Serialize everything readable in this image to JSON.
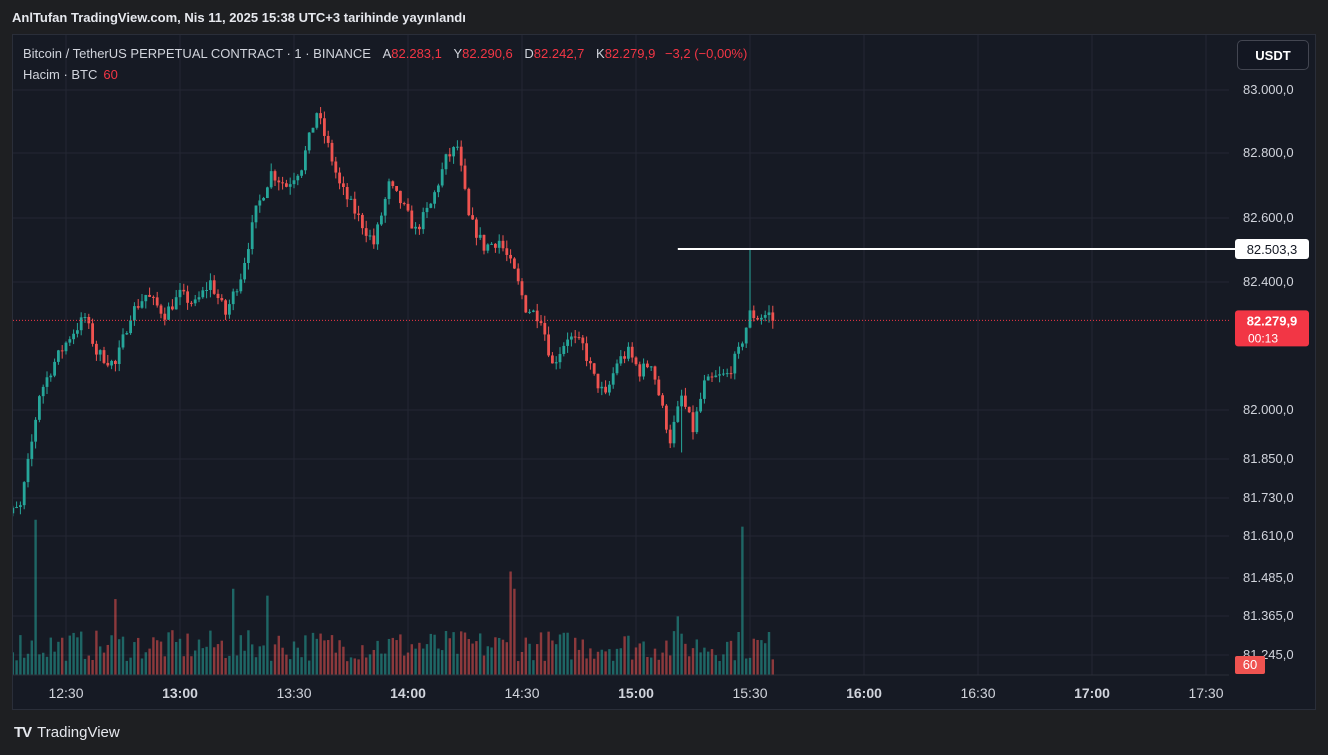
{
  "header": {
    "published": "AnlTufan TradingView.com, Nis 11, 2025 15:38 UTC+3 tarihinde yayınlandı"
  },
  "legend": {
    "symbol": "Bitcoin / TetherUS PERPETUAL CONTRACT · 1 · BINANCE",
    "open_label": "A",
    "open": "82.283,1",
    "high_label": "Y",
    "high": "82.290,6",
    "low_label": "D",
    "low": "82.242,7",
    "close_label": "K",
    "close": "82.279,9",
    "change": "−3,2 (−0,00%)",
    "volume_label": "Hacim · BTC",
    "volume_value": "60"
  },
  "currency_button": "USDT",
  "footer": {
    "brand": "TradingView",
    "logo": "TV"
  },
  "colors": {
    "up": "#26a69a",
    "down": "#ef5350",
    "price_badge": "#f23645",
    "background": "#161a24",
    "grid": "#242733"
  },
  "chart_data": {
    "type": "candlestick",
    "y_axis_ticks": [
      "83.000,0",
      "82.800,0",
      "82.600,0",
      "82.400,0",
      "82.000,0",
      "81.850,0",
      "81.730,0",
      "81.610,0",
      "81.485,0",
      "81.365,0",
      "81.245,0"
    ],
    "x_axis_ticks": [
      "12:30",
      "13:00",
      "13:30",
      "14:00",
      "14:30",
      "15:00",
      "15:30",
      "16:00",
      "16:30",
      "17:00",
      "17:30"
    ],
    "bold_x_ticks": [
      "13:00",
      "14:00",
      "15:00",
      "16:00",
      "17:00"
    ],
    "horizontal_line": {
      "label": "82.503,3",
      "value": 82503.3,
      "start_time": "15:11"
    },
    "last_price": {
      "label": "82.279,9",
      "countdown": "00:13",
      "value": 82279.9
    },
    "volume_badge": "60",
    "keypoints": [
      {
        "t": "12:12",
        "p": 81590
      },
      {
        "t": "12:15",
        "p": 81680
      },
      {
        "t": "12:18",
        "p": 81700
      },
      {
        "t": "12:21",
        "p": 81900
      },
      {
        "t": "12:23",
        "p": 82050
      },
      {
        "t": "12:27",
        "p": 82150
      },
      {
        "t": "12:31",
        "p": 82230
      },
      {
        "t": "12:35",
        "p": 82290
      },
      {
        "t": "12:38",
        "p": 82180
      },
      {
        "t": "12:43",
        "p": 82140
      },
      {
        "t": "12:47",
        "p": 82300
      },
      {
        "t": "12:51",
        "p": 82360
      },
      {
        "t": "12:56",
        "p": 82300
      },
      {
        "t": "13:00",
        "p": 82360
      },
      {
        "t": "13:04",
        "p": 82330
      },
      {
        "t": "13:08",
        "p": 82400
      },
      {
        "t": "13:12",
        "p": 82300
      },
      {
        "t": "13:16",
        "p": 82420
      },
      {
        "t": "13:20",
        "p": 82620
      },
      {
        "t": "13:24",
        "p": 82740
      },
      {
        "t": "13:28",
        "p": 82700
      },
      {
        "t": "13:32",
        "p": 82760
      },
      {
        "t": "13:36",
        "p": 82930
      },
      {
        "t": "13:39",
        "p": 82820
      },
      {
        "t": "13:42",
        "p": 82700
      },
      {
        "t": "13:46",
        "p": 82620
      },
      {
        "t": "13:51",
        "p": 82520
      },
      {
        "t": "13:55",
        "p": 82700
      },
      {
        "t": "13:58",
        "p": 82650
      },
      {
        "t": "14:02",
        "p": 82560
      },
      {
        "t": "14:06",
        "p": 82640
      },
      {
        "t": "14:10",
        "p": 82780
      },
      {
        "t": "14:13",
        "p": 82820
      },
      {
        "t": "14:16",
        "p": 82600
      },
      {
        "t": "14:20",
        "p": 82510
      },
      {
        "t": "14:24",
        "p": 82530
      },
      {
        "t": "14:28",
        "p": 82430
      },
      {
        "t": "14:31",
        "p": 82320
      },
      {
        "t": "14:35",
        "p": 82290
      },
      {
        "t": "14:38",
        "p": 82140
      },
      {
        "t": "14:42",
        "p": 82230
      },
      {
        "t": "14:46",
        "p": 82200
      },
      {
        "t": "14:49",
        "p": 82100
      },
      {
        "t": "14:52",
        "p": 82040
      },
      {
        "t": "14:55",
        "p": 82150
      },
      {
        "t": "14:58",
        "p": 82180
      },
      {
        "t": "15:01",
        "p": 82120
      },
      {
        "t": "15:04",
        "p": 82150
      },
      {
        "t": "15:07",
        "p": 82000
      },
      {
        "t": "15:09",
        "p": 81910
      },
      {
        "t": "15:12",
        "p": 82040
      },
      {
        "t": "15:15",
        "p": 81940
      },
      {
        "t": "15:18",
        "p": 82080
      },
      {
        "t": "15:21",
        "p": 82100
      },
      {
        "t": "15:24",
        "p": 82110
      },
      {
        "t": "15:27",
        "p": 82180
      },
      {
        "t": "15:30",
        "p": 82300
      },
      {
        "t": "15:32",
        "p": 82290
      },
      {
        "t": "15:35",
        "p": 82300
      },
      {
        "t": "15:36",
        "p": 82280
      }
    ],
    "volume_spikes": [
      {
        "t": "12:22",
        "v": 45
      },
      {
        "t": "12:43",
        "v": 22
      },
      {
        "t": "13:14",
        "v": 25
      },
      {
        "t": "13:23",
        "v": 23
      },
      {
        "t": "14:27",
        "v": 30
      },
      {
        "t": "14:28",
        "v": 25
      },
      {
        "t": "15:11",
        "v": 17
      },
      {
        "t": "15:28",
        "v": 43
      }
    ]
  }
}
